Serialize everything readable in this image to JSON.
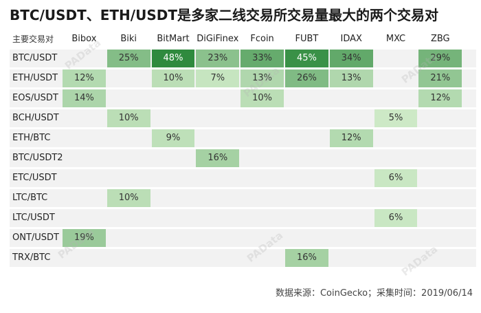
{
  "title": "BTC/USDT、ETH/USDT是多家二线交易所交易量最大的两个交易对",
  "footer": "数据来源：CoinGecko；采集时间：2019/06/14",
  "watermark": "PAData",
  "colors": {
    "row_band": "#f2f2f2",
    "scale_light": "#cde9c6",
    "scale_dark": "#2f8a3e"
  },
  "chart_data": {
    "type": "heatmap",
    "title": "BTC/USDT、ETH/USDT是多家二线交易所交易量最大的两个交易对",
    "row_header": "主要交易对",
    "columns": [
      "Bibox",
      "Biki",
      "BitMart",
      "DiGiFinex",
      "Fcoin",
      "FUBT",
      "IDAX",
      "MXC",
      "ZBG"
    ],
    "rows": [
      "BTC/USDT",
      "ETH/USDT",
      "EOS/USDT",
      "BCH/USDT",
      "ETH/BTC",
      "BTC/USDT2",
      "ETC/USDT",
      "LTC/BTC",
      "LTC/USDT",
      "ONT/USDT",
      "TRX/BTC"
    ],
    "values": [
      [
        null,
        25,
        48,
        23,
        33,
        45,
        34,
        null,
        29
      ],
      [
        12,
        null,
        10,
        7,
        13,
        26,
        13,
        null,
        21
      ],
      [
        14,
        null,
        null,
        null,
        10,
        null,
        null,
        null,
        12
      ],
      [
        null,
        10,
        null,
        null,
        null,
        null,
        null,
        5,
        null
      ],
      [
        null,
        null,
        9,
        null,
        null,
        null,
        12,
        null,
        null
      ],
      [
        null,
        null,
        null,
        16,
        null,
        null,
        null,
        null,
        null
      ],
      [
        null,
        null,
        null,
        null,
        null,
        null,
        null,
        6,
        null
      ],
      [
        null,
        10,
        null,
        null,
        null,
        null,
        null,
        null,
        null
      ],
      [
        null,
        null,
        null,
        null,
        null,
        null,
        null,
        6,
        null
      ],
      [
        19,
        null,
        null,
        null,
        null,
        null,
        null,
        null,
        null
      ],
      [
        null,
        null,
        null,
        null,
        null,
        16,
        null,
        null,
        null
      ]
    ],
    "unit": "%",
    "source": "数据来源：CoinGecko；采集时间：2019/06/14"
  }
}
